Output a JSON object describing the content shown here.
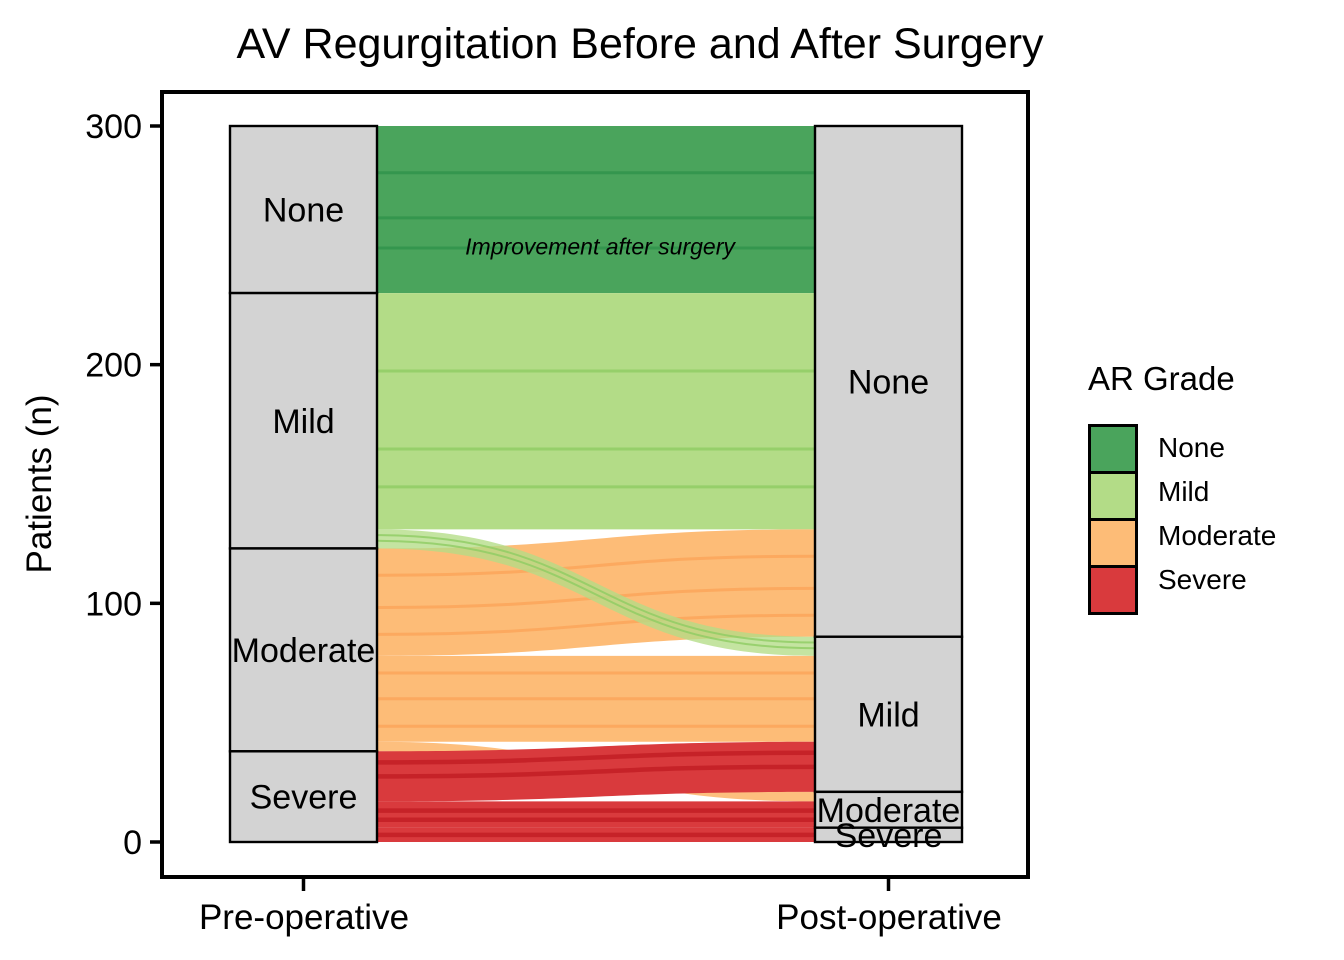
{
  "chart_data": {
    "type": "alluvial",
    "title": "AV Regurgitation Before and After Surgery",
    "ylabel": "Patients (n)",
    "ylim": [
      0,
      300
    ],
    "y_ticks": [
      0,
      100,
      200,
      300
    ],
    "axes": [
      "Pre-operative",
      "Post-operative"
    ],
    "grades": [
      "None",
      "Mild",
      "Moderate",
      "Severe"
    ],
    "grade_colors": {
      "None": "#4AA45C",
      "Mild": "#B3DC87",
      "Moderate": "#FDBC77",
      "Severe": "#D93A3D"
    },
    "stripe_colors": {
      "None": "#2E9149",
      "Mild": "#8FCC63",
      "Moderate": "#FBA155",
      "Severe": "#C21E24"
    },
    "stratum_fill": "#D3D3D3",
    "stratum_border": "#000000",
    "pre_counts": {
      "None": 70,
      "Mild": 107,
      "Moderate": 85,
      "Severe": 38
    },
    "post_counts": {
      "None": 214,
      "Mild": 65,
      "Moderate": 15,
      "Severe": 6
    },
    "flows": [
      {
        "from": "None",
        "to": "None",
        "n": 70
      },
      {
        "from": "Mild",
        "to": "None",
        "n": 99
      },
      {
        "from": "Mild",
        "to": "Mild",
        "n": 8
      },
      {
        "from": "Moderate",
        "to": "None",
        "n": 45
      },
      {
        "from": "Moderate",
        "to": "Mild",
        "n": 36
      },
      {
        "from": "Moderate",
        "to": "Moderate",
        "n": 4
      },
      {
        "from": "Severe",
        "to": "Mild",
        "n": 21
      },
      {
        "from": "Severe",
        "to": "Moderate",
        "n": 11
      },
      {
        "from": "Severe",
        "to": "Severe",
        "n": 6
      }
    ],
    "annotation": "Improvement after surgery",
    "legend": {
      "title": "AR Grade",
      "entries": [
        "None",
        "Mild",
        "Moderate",
        "Severe"
      ]
    }
  }
}
